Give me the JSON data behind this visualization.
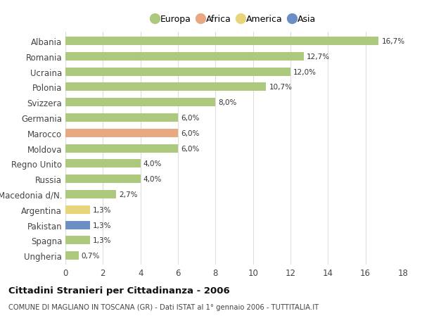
{
  "categories": [
    "Albania",
    "Romania",
    "Ucraina",
    "Polonia",
    "Svizzera",
    "Germania",
    "Marocco",
    "Moldova",
    "Regno Unito",
    "Russia",
    "Macedonia d/N.",
    "Argentina",
    "Pakistan",
    "Spagna",
    "Ungheria"
  ],
  "values": [
    16.7,
    12.7,
    12.0,
    10.7,
    8.0,
    6.0,
    6.0,
    6.0,
    4.0,
    4.0,
    2.7,
    1.3,
    1.3,
    1.3,
    0.7
  ],
  "labels": [
    "16,7%",
    "12,7%",
    "12,0%",
    "10,7%",
    "8,0%",
    "6,0%",
    "6,0%",
    "6,0%",
    "4,0%",
    "4,0%",
    "2,7%",
    "1,3%",
    "1,3%",
    "1,3%",
    "0,7%"
  ],
  "continent": [
    "Europa",
    "Europa",
    "Europa",
    "Europa",
    "Europa",
    "Europa",
    "Africa",
    "Europa",
    "Europa",
    "Europa",
    "Europa",
    "America",
    "Asia",
    "Europa",
    "Europa"
  ],
  "colors": {
    "Europa": "#adc97e",
    "Africa": "#e8a882",
    "America": "#e8d57a",
    "Asia": "#6b8ec4"
  },
  "legend_items": [
    "Europa",
    "Africa",
    "America",
    "Asia"
  ],
  "legend_colors": [
    "#adc97e",
    "#e8a882",
    "#e8d57a",
    "#6b8ec4"
  ],
  "title": "Cittadini Stranieri per Cittadinanza - 2006",
  "subtitle": "COMUNE DI MAGLIANO IN TOSCANA (GR) - Dati ISTAT al 1° gennaio 2006 - TUTTITALIA.IT",
  "xlim": [
    0,
    18
  ],
  "xticks": [
    0,
    2,
    4,
    6,
    8,
    10,
    12,
    14,
    16,
    18
  ],
  "background_color": "#ffffff",
  "grid_color": "#dddddd",
  "bar_height": 0.55
}
